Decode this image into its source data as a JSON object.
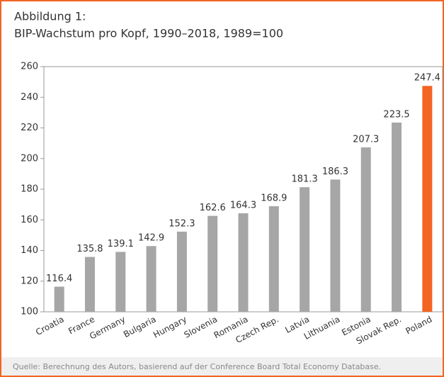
{
  "chart_data": {
    "type": "bar",
    "title": "Abbildung 1:",
    "subtitle": "BIP-Wachstum pro Kopf, 1990–2018, 1989=100",
    "categories": [
      "Croatia",
      "France",
      "Germany",
      "Bulgaria",
      "Hungary",
      "Slovenia",
      "Romania",
      "Czech Rep.",
      "Latvia",
      "Lithuania",
      "Estonia",
      "Slovak Rep.",
      "Poland"
    ],
    "values": [
      116.4,
      135.8,
      139.1,
      142.9,
      152.3,
      162.6,
      164.3,
      168.9,
      181.3,
      186.3,
      207.3,
      223.5,
      247.4
    ],
    "colors": [
      "#a6a6a6",
      "#a6a6a6",
      "#a6a6a6",
      "#a6a6a6",
      "#a6a6a6",
      "#a6a6a6",
      "#a6a6a6",
      "#a6a6a6",
      "#a6a6a6",
      "#a6a6a6",
      "#a6a6a6",
      "#a6a6a6",
      "#f26522"
    ],
    "ylim": [
      100,
      260
    ],
    "yticks": [
      100,
      120,
      140,
      160,
      180,
      200,
      220,
      240,
      260
    ],
    "grid": false,
    "source": "Quelle: Berechnung des Autors, basierend auf der Conference Board Total Economy Database."
  }
}
